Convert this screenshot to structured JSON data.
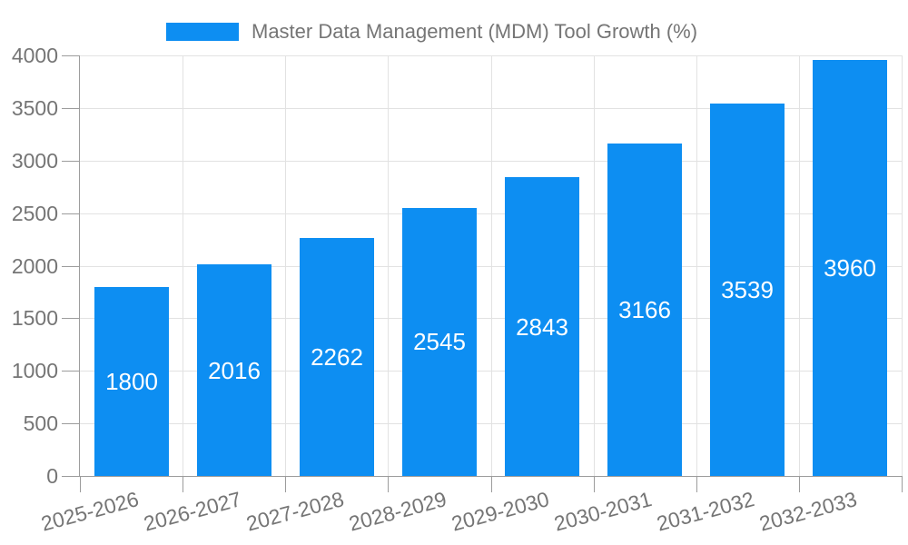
{
  "colors": {
    "bar": "#0d8ef2",
    "grid": "#e2e2e2",
    "axis": "#9c9c9c",
    "text": "#757575",
    "value_label": "#ffffff"
  },
  "legend": {
    "label": "Master Data Management (MDM) Tool Growth (%)"
  },
  "chart_data": {
    "type": "bar",
    "title": "Master Data Management (MDM) Tool Growth (%)",
    "categories": [
      "2025-2026",
      "2026-2027",
      "2027-2028",
      "2028-2029",
      "2029-2030",
      "2030-2031",
      "2031-2032",
      "2032-2033"
    ],
    "values": [
      1800,
      2016,
      2262,
      2545,
      2843,
      3166,
      3539,
      3960
    ],
    "series": [
      {
        "name": "Master Data Management (MDM) Tool Growth (%)",
        "values": [
          1800,
          2016,
          2262,
          2545,
          2843,
          3166,
          3539,
          3960
        ]
      }
    ],
    "xlabel": "",
    "ylabel": "",
    "ylim": [
      0,
      4000
    ],
    "yticks": [
      0,
      500,
      1000,
      1500,
      2000,
      2500,
      3000,
      3500,
      4000
    ],
    "grid": true,
    "legend_position": "top-center",
    "value_labels": "inside-center-white",
    "x_tick_rotation_deg": -15
  }
}
